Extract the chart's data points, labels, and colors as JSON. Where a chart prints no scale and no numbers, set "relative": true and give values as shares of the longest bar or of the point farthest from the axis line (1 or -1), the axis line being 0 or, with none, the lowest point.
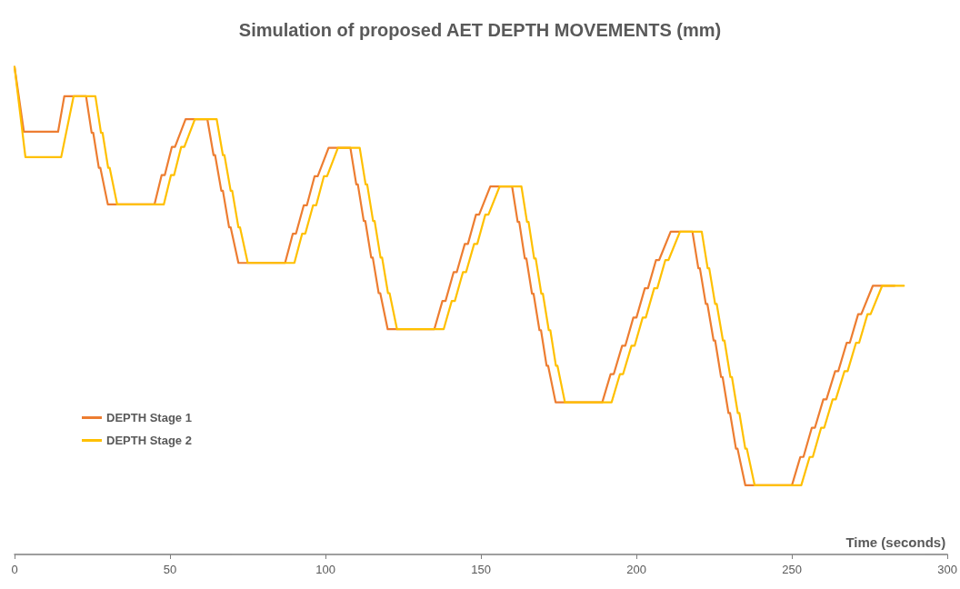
{
  "chart_data": {
    "type": "line",
    "title": "Simulation of proposed AET DEPTH MOVEMENTS (mm)",
    "xlabel": "Time (seconds)",
    "relative": true,
    "xlim": [
      0,
      300
    ],
    "xticks": [
      0,
      50,
      100,
      150,
      200,
      250,
      300
    ],
    "legend": "bottom left",
    "marker": "none",
    "line_style": "solid",
    "series": [
      {
        "name": "DEPTH Stage 1",
        "color": "#ed7d31",
        "x": [
          0,
          3,
          14,
          16,
          23,
          24.8,
          25.3,
          27.1,
          27.6,
          30,
          45,
          47.3,
          48.3,
          50.6,
          51.6,
          55,
          62,
          64,
          64.5,
          66.5,
          67,
          69,
          69.5,
          72,
          87,
          89.5,
          90.5,
          93,
          94,
          96.5,
          97.5,
          101,
          108,
          109.9,
          110.4,
          112.3,
          112.8,
          114.7,
          115.2,
          117.1,
          117.6,
          120,
          135,
          137.6,
          138.6,
          141.2,
          142.2,
          144.8,
          145.8,
          148.4,
          149.4,
          153,
          160,
          161.8,
          162.3,
          164.1,
          164.6,
          166.4,
          166.9,
          168.8,
          169.3,
          171.1,
          171.6,
          174,
          189,
          191.7,
          192.7,
          195.4,
          196.4,
          199,
          200,
          202.7,
          203.7,
          206.3,
          207.3,
          211,
          218,
          219.9,
          220.4,
          222.3,
          222.8,
          224.8,
          225.3,
          227.2,
          227.7,
          229.6,
          230.1,
          232,
          232.5,
          235,
          250,
          252.7,
          253.7,
          256.4,
          257.4,
          260.1,
          261.1,
          263.9,
          264.9,
          267.6,
          268.6,
          271.3,
          272.3,
          276,
          283
        ],
        "values": [
          1,
          0.867,
          0.867,
          0.94,
          0.94,
          0.865,
          0.865,
          0.793,
          0.793,
          0.718,
          0.718,
          0.778,
          0.778,
          0.836,
          0.836,
          0.893,
          0.893,
          0.819,
          0.819,
          0.746,
          0.746,
          0.671,
          0.671,
          0.598,
          0.598,
          0.658,
          0.658,
          0.716,
          0.716,
          0.776,
          0.776,
          0.834,
          0.834,
          0.759,
          0.759,
          0.684,
          0.684,
          0.609,
          0.609,
          0.536,
          0.536,
          0.462,
          0.462,
          0.52,
          0.52,
          0.579,
          0.579,
          0.637,
          0.637,
          0.697,
          0.697,
          0.755,
          0.755,
          0.682,
          0.682,
          0.607,
          0.607,
          0.535,
          0.535,
          0.46,
          0.46,
          0.387,
          0.387,
          0.312,
          0.312,
          0.37,
          0.37,
          0.428,
          0.428,
          0.486,
          0.486,
          0.546,
          0.546,
          0.604,
          0.604,
          0.662,
          0.662,
          0.587,
          0.587,
          0.514,
          0.514,
          0.439,
          0.439,
          0.364,
          0.364,
          0.29,
          0.29,
          0.217,
          0.217,
          0.142,
          0.142,
          0.2,
          0.2,
          0.26,
          0.26,
          0.318,
          0.318,
          0.376,
          0.376,
          0.434,
          0.434,
          0.493,
          0.493,
          0.551,
          0.551
        ]
      },
      {
        "name": "DEPTH Stage 2",
        "color": "#ffc000",
        "x": [
          0,
          3.5,
          15,
          19,
          26,
          27.8,
          28.3,
          30.1,
          30.6,
          33,
          48,
          50.3,
          51.3,
          53.6,
          54.6,
          58,
          65,
          67,
          67.5,
          69.5,
          70,
          72,
          72.5,
          75,
          90,
          92.5,
          93.5,
          96,
          97,
          99.5,
          100.5,
          104,
          111,
          112.9,
          113.4,
          115.3,
          115.8,
          117.7,
          118.2,
          120.1,
          120.6,
          123,
          138,
          140.6,
          141.6,
          144.2,
          145.2,
          147.8,
          148.8,
          151.4,
          152.4,
          156,
          163,
          164.8,
          165.3,
          167.1,
          167.6,
          169.4,
          169.9,
          171.8,
          172.3,
          174.1,
          174.6,
          177,
          192,
          194.7,
          195.7,
          198.4,
          199.4,
          202,
          203,
          205.7,
          206.7,
          209.3,
          210.3,
          214,
          221,
          222.9,
          223.4,
          225.3,
          225.8,
          227.8,
          228.3,
          230.2,
          230.7,
          232.6,
          233.1,
          235,
          235.5,
          238,
          253,
          255.7,
          256.7,
          259.4,
          260.4,
          263.1,
          264.1,
          266.9,
          267.9,
          270.6,
          271.6,
          274.3,
          275.3,
          279,
          286
        ],
        "values": [
          1,
          0.815,
          0.815,
          0.94,
          0.94,
          0.865,
          0.865,
          0.793,
          0.793,
          0.718,
          0.718,
          0.778,
          0.778,
          0.836,
          0.836,
          0.893,
          0.893,
          0.819,
          0.819,
          0.746,
          0.746,
          0.671,
          0.671,
          0.598,
          0.598,
          0.658,
          0.658,
          0.716,
          0.716,
          0.776,
          0.776,
          0.834,
          0.834,
          0.759,
          0.759,
          0.684,
          0.684,
          0.609,
          0.609,
          0.536,
          0.536,
          0.462,
          0.462,
          0.52,
          0.52,
          0.579,
          0.579,
          0.637,
          0.637,
          0.697,
          0.697,
          0.755,
          0.755,
          0.682,
          0.682,
          0.607,
          0.607,
          0.535,
          0.535,
          0.46,
          0.46,
          0.387,
          0.387,
          0.312,
          0.312,
          0.37,
          0.37,
          0.428,
          0.428,
          0.486,
          0.486,
          0.546,
          0.546,
          0.604,
          0.604,
          0.662,
          0.662,
          0.587,
          0.587,
          0.514,
          0.514,
          0.439,
          0.439,
          0.364,
          0.364,
          0.29,
          0.29,
          0.217,
          0.217,
          0.142,
          0.142,
          0.2,
          0.2,
          0.26,
          0.26,
          0.318,
          0.318,
          0.376,
          0.376,
          0.434,
          0.434,
          0.493,
          0.493,
          0.551,
          0.551
        ]
      }
    ]
  }
}
